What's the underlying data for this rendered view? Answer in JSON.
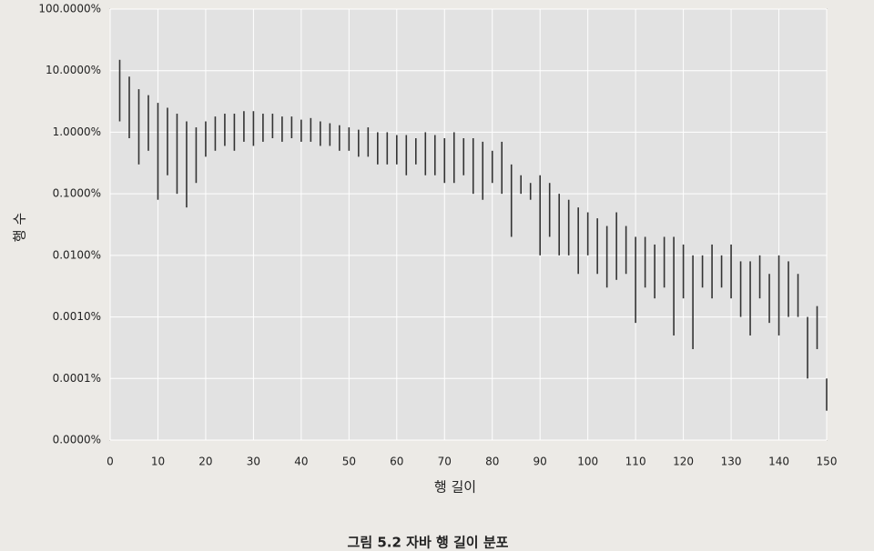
{
  "chart_data": {
    "type": "range",
    "x_label": "행 길이",
    "y_label": "행 수",
    "caption": "그림 5.2 자바 행 길이 분포",
    "x": [
      2,
      4,
      6,
      8,
      10,
      12,
      14,
      16,
      18,
      20,
      22,
      24,
      26,
      28,
      30,
      32,
      34,
      36,
      38,
      40,
      42,
      44,
      46,
      48,
      50,
      52,
      54,
      56,
      58,
      60,
      62,
      64,
      66,
      68,
      70,
      72,
      74,
      76,
      78,
      80,
      82,
      84,
      86,
      88,
      90,
      92,
      94,
      96,
      98,
      100,
      102,
      104,
      106,
      108,
      110,
      112,
      114,
      116,
      118,
      120,
      122,
      124,
      126,
      128,
      130,
      132,
      134,
      136,
      138,
      140,
      142,
      144,
      146,
      148,
      150
    ],
    "low": [
      1.5,
      0.8,
      0.3,
      0.5,
      0.08,
      0.2,
      0.1,
      0.06,
      0.15,
      0.4,
      0.5,
      0.6,
      0.5,
      0.7,
      0.6,
      0.7,
      0.8,
      0.7,
      0.8,
      0.7,
      0.7,
      0.6,
      0.6,
      0.5,
      0.5,
      0.4,
      0.4,
      0.3,
      0.3,
      0.3,
      0.2,
      0.3,
      0.2,
      0.2,
      0.15,
      0.15,
      0.2,
      0.1,
      0.08,
      0.15,
      0.1,
      0.02,
      0.1,
      0.08,
      0.01,
      0.02,
      0.01,
      0.01,
      0.005,
      0.01,
      0.005,
      0.003,
      0.004,
      0.005,
      0.0008,
      0.003,
      0.002,
      0.003,
      0.0005,
      0.002,
      0.0003,
      0.003,
      0.002,
      0.003,
      0.002,
      0.001,
      0.0005,
      0.002,
      0.0008,
      0.0005,
      0.001,
      0.001,
      0.0001,
      0.0003,
      3e-05
    ],
    "high": [
      15,
      8,
      5,
      4,
      3,
      2.5,
      2,
      1.5,
      1.2,
      1.5,
      1.8,
      2,
      2,
      2.2,
      2.2,
      2,
      2,
      1.8,
      1.8,
      1.6,
      1.7,
      1.5,
      1.4,
      1.3,
      1.2,
      1.1,
      1.2,
      1,
      1,
      0.9,
      0.9,
      0.8,
      1,
      0.9,
      0.8,
      1,
      0.8,
      0.8,
      0.7,
      0.5,
      0.7,
      0.3,
      0.2,
      0.15,
      0.2,
      0.15,
      0.1,
      0.08,
      0.06,
      0.05,
      0.04,
      0.03,
      0.05,
      0.03,
      0.02,
      0.02,
      0.015,
      0.02,
      0.02,
      0.015,
      0.01,
      0.01,
      0.015,
      0.01,
      0.015,
      0.008,
      0.008,
      0.01,
      0.005,
      0.01,
      0.008,
      0.005,
      0.001,
      0.0015,
      0.0001
    ],
    "color": "#333333",
    "xlim": [
      0,
      150
    ],
    "xticks": [
      0,
      10,
      20,
      30,
      40,
      50,
      60,
      70,
      80,
      90,
      100,
      110,
      120,
      130,
      140,
      150
    ],
    "ylim": [
      1e-05,
      100
    ],
    "ylog": true,
    "yticks": [
      {
        "value": 1e-05,
        "label": "0.0000%"
      },
      {
        "value": 0.0001,
        "label": "0.0001%"
      },
      {
        "value": 0.001,
        "label": "0.0010%"
      },
      {
        "value": 0.01,
        "label": "0.0100%"
      },
      {
        "value": 0.1,
        "label": "0.1000%"
      },
      {
        "value": 1,
        "label": "1.0000%"
      },
      {
        "value": 10,
        "label": "10.0000%"
      },
      {
        "value": 100,
        "label": "100.0000%"
      }
    ],
    "grid": true
  }
}
